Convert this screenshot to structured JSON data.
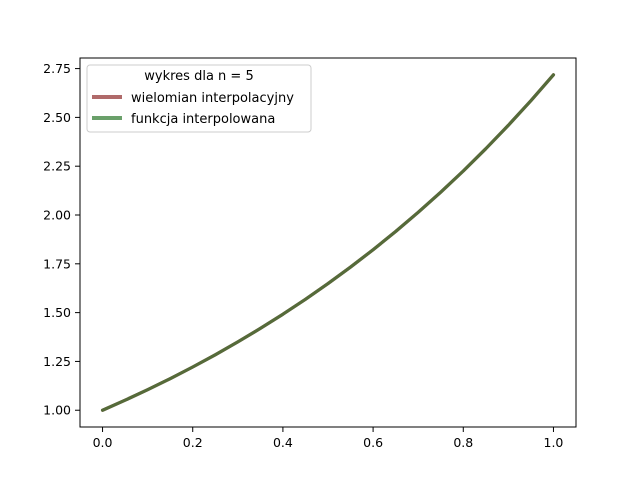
{
  "chart_data": {
    "type": "line",
    "title": "",
    "xlabel": "",
    "ylabel": "",
    "xlim": [
      -0.05,
      1.05
    ],
    "ylim": [
      0.9141,
      2.8042
    ],
    "x_ticks": [
      {
        "value": 0.0,
        "label": "0.0"
      },
      {
        "value": 0.2,
        "label": "0.2"
      },
      {
        "value": 0.4,
        "label": "0.4"
      },
      {
        "value": 0.6,
        "label": "0.6"
      },
      {
        "value": 0.8,
        "label": "0.8"
      },
      {
        "value": 1.0,
        "label": "1.0"
      }
    ],
    "y_ticks": [
      {
        "value": 1.0,
        "label": "1.00"
      },
      {
        "value": 1.25,
        "label": "1.25"
      },
      {
        "value": 1.5,
        "label": "1.50"
      },
      {
        "value": 1.75,
        "label": "1.75"
      },
      {
        "value": 2.0,
        "label": "2.00"
      },
      {
        "value": 2.25,
        "label": "2.25"
      },
      {
        "value": 2.5,
        "label": "2.50"
      },
      {
        "value": 2.75,
        "label": "2.75"
      }
    ],
    "grid": false,
    "legend": {
      "title": "wykres dla n = 5",
      "placement": "upper-left"
    },
    "x": [
      0.0,
      0.05,
      0.1,
      0.15,
      0.2,
      0.25,
      0.3,
      0.35,
      0.4,
      0.45,
      0.5,
      0.55,
      0.6,
      0.65,
      0.7,
      0.75,
      0.8,
      0.85,
      0.9,
      0.95,
      1.0
    ],
    "series": [
      {
        "name": "wielomian interpolacyjny",
        "color": "#b06a6a",
        "values": [
          1.0,
          1.0513,
          1.1052,
          1.1618,
          1.2214,
          1.284,
          1.3499,
          1.4191,
          1.4918,
          1.5683,
          1.6487,
          1.7333,
          1.8221,
          1.9155,
          2.0138,
          2.117,
          2.2255,
          2.3396,
          2.4596,
          2.5857,
          2.7183
        ]
      },
      {
        "name": "funkcja interpolowana",
        "color": "#6aa06a",
        "values": [
          1.0,
          1.0513,
          1.1052,
          1.1618,
          1.2214,
          1.284,
          1.3499,
          1.4191,
          1.4918,
          1.5683,
          1.6487,
          1.7333,
          1.8221,
          1.9155,
          2.0138,
          2.117,
          2.2255,
          2.3396,
          2.4596,
          2.5857,
          2.7183
        ]
      }
    ],
    "overlap_color": "#556b3a"
  }
}
